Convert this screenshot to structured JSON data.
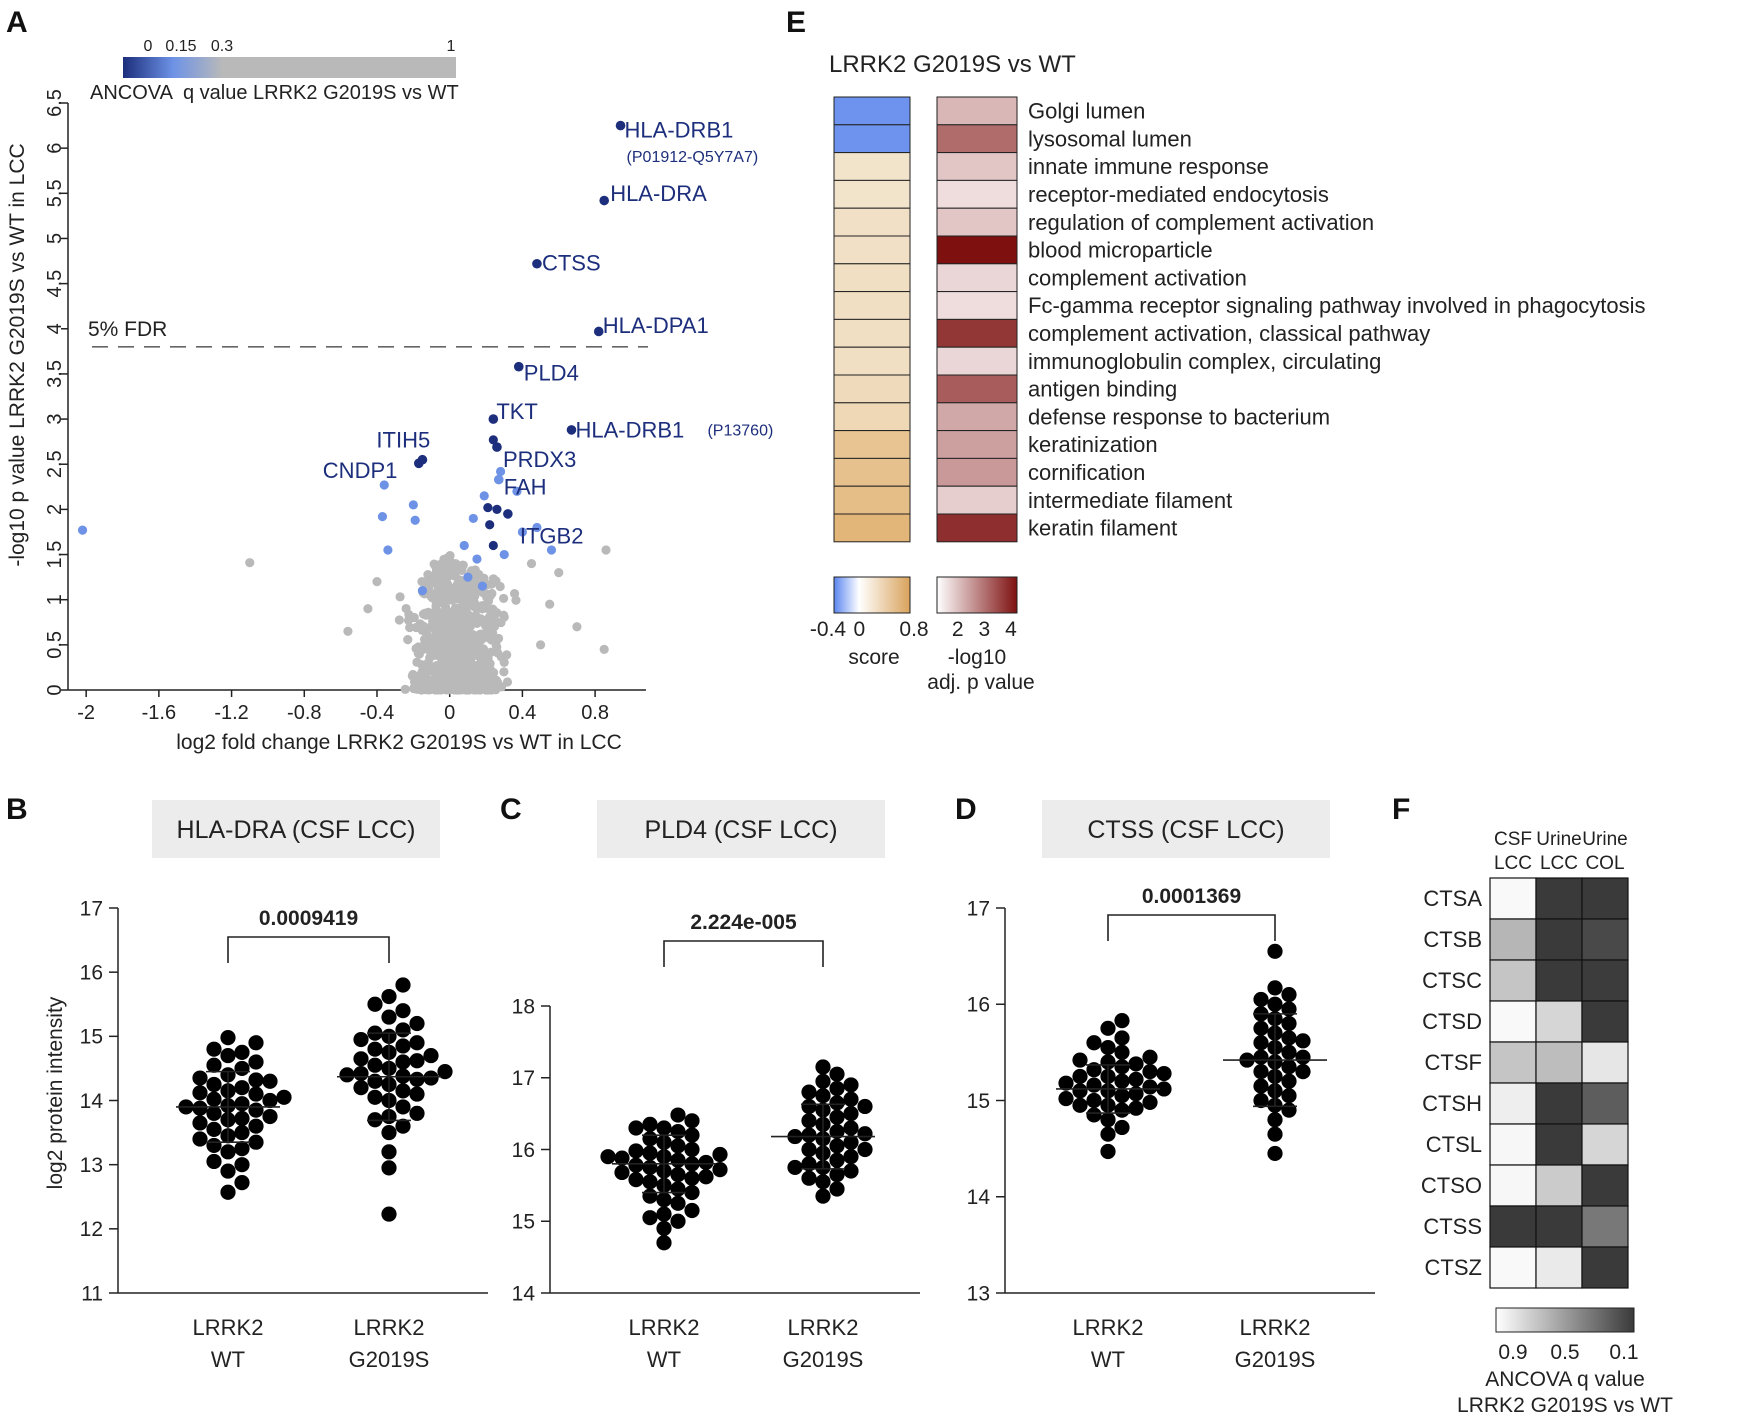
{
  "panel_letters": {
    "a": "A",
    "b": "B",
    "c": "C",
    "d": "D",
    "e": "E",
    "f": "F"
  },
  "colors": {
    "sig_dark": "#1c2e7c",
    "sig_light": "#6d92e6",
    "nonsig": "#b9b9b9",
    "label_blue": "#1c2e7c",
    "dot_black": "#000000",
    "title_box": "#ececec",
    "score_neg": "#6e93ee",
    "score_low": "#f2e3cb",
    "score_high": "#e0b170",
    "padj_low": "#fbf4f4",
    "padj_high": "#7e1010",
    "grid_dark": "#3a3a3a"
  },
  "chart_data": [
    {
      "id": "A",
      "type": "scatter",
      "subtype": "volcano",
      "xlabel": "log2 fold change LRRK2 G2019S vs WT in LCC",
      "ylabel": "-log10 p value LRRK2 G2019S vs WT in LCC",
      "xlim": [
        -2.1,
        1.08
      ],
      "ylim": [
        0,
        6.5
      ],
      "xticks": [
        "-2",
        "-1.6",
        "-1.2",
        "-0.8",
        "-0.4",
        "0",
        "0.4",
        "0.8"
      ],
      "yticks": [
        "0",
        "0.5",
        "1",
        "1.5",
        "2",
        "2.5",
        "3",
        "3.5",
        "4",
        "4.5",
        "5",
        "5.5",
        "6",
        "6.5"
      ],
      "fdr_label": "5% FDR",
      "fdr_y": 3.8,
      "colorbar": {
        "title": "ANCOVA  q value LRRK2 G2019S vs WT",
        "tick_labels": [
          "0",
          "0.15",
          "0.3",
          "1"
        ],
        "tick_values": [
          0,
          0.15,
          0.3,
          1
        ]
      },
      "labeled_points": [
        {
          "label": "HLA-DRB1",
          "sub": "(P01912-Q5Y7A7)",
          "x": 0.94,
          "y": 6.25,
          "q": "dark"
        },
        {
          "label": "HLA-DRA",
          "sub": "",
          "x": 0.85,
          "y": 5.42,
          "q": "dark"
        },
        {
          "label": "CTSS",
          "sub": "",
          "x": 0.48,
          "y": 4.72,
          "q": "dark"
        },
        {
          "label": "HLA-DPA1",
          "sub": "",
          "x": 0.82,
          "y": 3.97,
          "q": "dark"
        },
        {
          "label": "PLD4",
          "sub": "",
          "x": 0.38,
          "y": 3.58,
          "q": "dark"
        },
        {
          "label": "TKT",
          "sub": "",
          "x": 0.24,
          "y": 3.0,
          "q": "dark"
        },
        {
          "label": "HLA-DRB1",
          "sub": "(P13760)",
          "x": 0.67,
          "y": 2.88,
          "q": "dark"
        },
        {
          "label": "PRDX3",
          "sub": "",
          "x": 0.26,
          "y": 2.69,
          "q": "dark"
        },
        {
          "label": "ITIH5",
          "sub": "",
          "x": -0.15,
          "y": 2.55,
          "q": "dark"
        },
        {
          "label": "CNDP1",
          "sub": "",
          "x": -0.17,
          "y": 2.51,
          "q": "dark"
        },
        {
          "label": "FAH",
          "sub": "",
          "x": 0.27,
          "y": 2.33,
          "q": "light"
        },
        {
          "label": "ITGB2",
          "sub": "",
          "x": 0.32,
          "y": 1.95,
          "q": "dark"
        }
      ],
      "other_significant_points": [
        {
          "x": 0.24,
          "y": 2.77,
          "q": "dark"
        },
        {
          "x": -0.36,
          "y": 2.27,
          "q": "light"
        },
        {
          "x": -2.02,
          "y": 1.77,
          "q": "light"
        },
        {
          "x": 0.28,
          "y": 2.42,
          "q": "light"
        },
        {
          "x": 0.21,
          "y": 2.02,
          "q": "dark"
        },
        {
          "x": 0.26,
          "y": 2.0,
          "q": "dark"
        },
        {
          "x": 0.19,
          "y": 2.15,
          "q": "light"
        },
        {
          "x": 0.37,
          "y": 2.2,
          "q": "light"
        },
        {
          "x": -0.37,
          "y": 1.92,
          "q": "light"
        },
        {
          "x": -0.19,
          "y": 1.88,
          "q": "light"
        },
        {
          "x": -0.2,
          "y": 2.05,
          "q": "light"
        },
        {
          "x": 0.13,
          "y": 1.9,
          "q": "light"
        },
        {
          "x": 0.4,
          "y": 1.75,
          "q": "light"
        },
        {
          "x": 0.22,
          "y": 1.83,
          "q": "dark"
        },
        {
          "x": 0.48,
          "y": 1.8,
          "q": "light"
        },
        {
          "x": 0.56,
          "y": 1.55,
          "q": "light"
        },
        {
          "x": 0.24,
          "y": 1.6,
          "q": "dark"
        },
        {
          "x": 0.3,
          "y": 1.5,
          "q": "light"
        },
        {
          "x": -0.34,
          "y": 1.55,
          "q": "light"
        },
        {
          "x": 0.15,
          "y": 1.45,
          "q": "light"
        },
        {
          "x": 0.08,
          "y": 1.6,
          "q": "light"
        },
        {
          "x": 0.1,
          "y": 1.25,
          "q": "light"
        },
        {
          "x": 0.18,
          "y": 1.15,
          "q": "light"
        },
        {
          "x": -0.15,
          "y": 1.1,
          "q": "light"
        }
      ],
      "nonsignificant_points": [
        {
          "x": -1.1,
          "y": 1.41
        },
        {
          "x": 0.86,
          "y": 1.55
        },
        {
          "x": 0.85,
          "y": 0.45
        },
        {
          "x": 0.6,
          "y": 1.3
        },
        {
          "x": 0.55,
          "y": 0.95
        },
        {
          "x": 0.7,
          "y": 0.7
        },
        {
          "x": -0.56,
          "y": 0.65
        },
        {
          "x": -0.45,
          "y": 0.9
        },
        {
          "x": -0.4,
          "y": 1.2
        },
        {
          "x": 0.5,
          "y": 0.5
        },
        {
          "x": 0.45,
          "y": 1.4
        }
      ],
      "nonsignificant_cloud": {
        "count": 850,
        "x_sd": 0.12,
        "seed": 7
      }
    },
    {
      "id": "B",
      "type": "scatter",
      "subtype": "dot-plot",
      "title": "HLA-DRA (CSF LCC)",
      "ylabel": "log2 protein intensity",
      "ylim": [
        11,
        17
      ],
      "yticks": [
        "11",
        "12",
        "13",
        "14",
        "15",
        "16",
        "17"
      ],
      "groups": [
        {
          "name1": "LRRK2",
          "name2": "WT",
          "mean": 13.9,
          "sd": 0.55,
          "values": [
            12.57,
            12.72,
            12.9,
            13.0,
            13.05,
            13.2,
            13.25,
            13.3,
            13.35,
            13.4,
            13.45,
            13.5,
            13.55,
            13.6,
            13.65,
            13.7,
            13.72,
            13.75,
            13.8,
            13.85,
            13.88,
            13.9,
            13.92,
            13.95,
            14.0,
            14.02,
            14.05,
            14.1,
            14.12,
            14.15,
            14.2,
            14.25,
            14.3,
            14.32,
            14.35,
            14.4,
            14.5,
            14.55,
            14.6,
            14.7,
            14.75,
            14.8,
            14.9,
            14.98
          ]
        },
        {
          "name1": "LRRK2",
          "name2": "G2019S",
          "mean": 14.37,
          "sd": 0.68,
          "values": [
            12.23,
            12.95,
            13.2,
            13.5,
            13.6,
            13.7,
            13.75,
            13.8,
            13.9,
            14.0,
            14.05,
            14.1,
            14.15,
            14.2,
            14.25,
            14.3,
            14.33,
            14.35,
            14.38,
            14.4,
            14.42,
            14.45,
            14.5,
            14.55,
            14.6,
            14.62,
            14.65,
            14.7,
            14.75,
            14.8,
            14.85,
            14.9,
            14.95,
            15.0,
            15.05,
            15.1,
            15.2,
            15.3,
            15.4,
            15.5,
            15.62,
            15.8
          ]
        }
      ],
      "pvalue": "0.0009419"
    },
    {
      "id": "C",
      "type": "scatter",
      "subtype": "dot-plot",
      "title": "PLD4 (CSF LCC)",
      "ylim": [
        14,
        18
      ],
      "yticks": [
        "14",
        "15",
        "16",
        "17",
        "18"
      ],
      "groups": [
        {
          "name1": "LRRK2",
          "name2": "WT",
          "mean": 15.8,
          "sd": 0.4,
          "values": [
            14.7,
            14.9,
            15.0,
            15.05,
            15.1,
            15.15,
            15.25,
            15.3,
            15.35,
            15.4,
            15.45,
            15.5,
            15.55,
            15.58,
            15.6,
            15.65,
            15.68,
            15.7,
            15.72,
            15.75,
            15.78,
            15.8,
            15.82,
            15.85,
            15.88,
            15.9,
            15.93,
            15.95,
            15.98,
            16.0,
            16.05,
            16.1,
            16.15,
            16.2,
            16.25,
            16.3,
            16.35,
            16.4,
            16.48,
            16.3,
            15.9,
            15.62
          ]
        },
        {
          "name1": "LRRK2",
          "name2": "G2019S",
          "mean": 16.18,
          "sd": 0.45,
          "values": [
            15.35,
            15.45,
            15.55,
            15.6,
            15.65,
            15.7,
            15.75,
            15.8,
            15.85,
            15.9,
            15.95,
            16.0,
            16.05,
            16.1,
            16.15,
            16.18,
            16.2,
            16.22,
            16.25,
            16.3,
            16.35,
            16.4,
            16.45,
            16.5,
            16.55,
            16.6,
            16.65,
            16.7,
            16.75,
            16.8,
            16.85,
            16.9,
            16.95,
            17.05,
            17.15,
            16.6,
            16.0,
            15.75
          ]
        }
      ],
      "pvalue": "2.224e-005"
    },
    {
      "id": "D",
      "type": "scatter",
      "subtype": "dot-plot",
      "title": "CTSS (CSF LCC)",
      "ylim": [
        13,
        17
      ],
      "yticks": [
        "13",
        "14",
        "15",
        "16",
        "17"
      ],
      "groups": [
        {
          "name1": "LRRK2",
          "name2": "WT",
          "mean": 15.12,
          "sd": 0.25,
          "values": [
            14.47,
            14.65,
            14.72,
            14.8,
            14.85,
            14.9,
            14.92,
            14.95,
            14.98,
            15.0,
            15.02,
            15.05,
            15.07,
            15.1,
            15.12,
            15.14,
            15.16,
            15.18,
            15.2,
            15.22,
            15.25,
            15.28,
            15.3,
            15.32,
            15.35,
            15.38,
            15.4,
            15.42,
            15.45,
            15.5,
            15.55,
            15.6,
            15.65,
            15.75,
            15.83,
            15.1,
            15.25,
            14.95
          ]
        },
        {
          "name1": "LRRK2",
          "name2": "G2019S",
          "mean": 15.42,
          "sd": 0.48,
          "values": [
            14.45,
            14.65,
            14.8,
            14.9,
            14.95,
            15.0,
            15.05,
            15.1,
            15.15,
            15.2,
            15.25,
            15.3,
            15.35,
            15.4,
            15.42,
            15.45,
            15.5,
            15.55,
            15.6,
            15.65,
            15.7,
            15.75,
            15.8,
            15.85,
            15.9,
            15.95,
            16.0,
            16.05,
            16.1,
            16.17,
            16.55,
            15.45,
            15.3,
            15.62
          ]
        }
      ],
      "pvalue": "0.0001369"
    },
    {
      "id": "E",
      "type": "heatmap",
      "title": "LRRK2 G2019S vs WT",
      "terms": [
        "Golgi lumen",
        "lysosomal lumen",
        "innate immune response",
        "receptor-mediated endocytosis",
        "regulation of complement activation",
        "blood microparticle",
        "complement activation",
        "Fc-gamma receptor signaling pathway involved in phagocytosis",
        "complement activation, classical pathway",
        "immunoglobulin complex, circulating",
        "antigen binding",
        "defense response to bacterium",
        "keratinization",
        "cornification",
        "intermediate filament",
        "keratin filament"
      ],
      "score": [
        -0.35,
        -0.35,
        0.3,
        0.3,
        0.32,
        0.32,
        0.33,
        0.33,
        0.33,
        0.33,
        0.36,
        0.38,
        0.52,
        0.54,
        0.56,
        0.62
      ],
      "neg_log10_adj_p": [
        1.8,
        2.8,
        1.6,
        1.3,
        1.6,
        4.0,
        1.4,
        1.3,
        3.5,
        1.4,
        3.0,
        2.0,
        2.1,
        2.2,
        1.5,
        3.6
      ],
      "score_legend": {
        "ticks": [
          "-0.4",
          "0",
          "0.8"
        ],
        "tick_values": [
          -0.4,
          0,
          0.8
        ],
        "label": "score"
      },
      "padj_legend": {
        "ticks": [
          "2",
          "3",
          "4"
        ],
        "tick_values": [
          2,
          3,
          4
        ],
        "range": [
          1,
          4
        ],
        "label1": "-log10",
        "label2": "adj. p value"
      }
    },
    {
      "id": "F",
      "type": "heatmap",
      "columns": [
        {
          "line1": "CSF",
          "line2": "LCC"
        },
        {
          "line1": "Urine",
          "line2": "LCC"
        },
        {
          "line1": "Urine",
          "line2": "COL"
        }
      ],
      "rows": [
        "CTSA",
        "CTSB",
        "CTSC",
        "CTSD",
        "CTSF",
        "CTSH",
        "CTSL",
        "CTSO",
        "CTSS",
        "CTSZ"
      ],
      "q_values": [
        [
          0.97,
          0.05,
          0.05
        ],
        [
          0.65,
          0.05,
          0.12
        ],
        [
          0.72,
          0.05,
          0.06
        ],
        [
          0.97,
          0.8,
          0.05
        ],
        [
          0.72,
          0.68,
          0.88
        ],
        [
          0.92,
          0.05,
          0.22
        ],
        [
          0.96,
          0.05,
          0.8
        ],
        [
          0.96,
          0.75,
          0.05
        ],
        [
          0.05,
          0.05,
          0.35
        ],
        [
          0.97,
          0.9,
          0.05
        ]
      ],
      "legend": {
        "ticks": [
          "0.9",
          "0.5",
          "0.1"
        ],
        "tick_values": [
          0.9,
          0.5,
          0.1
        ],
        "label1": "ANCOVA q value",
        "label2": "LRRK2 G2019S vs WT"
      }
    }
  ]
}
